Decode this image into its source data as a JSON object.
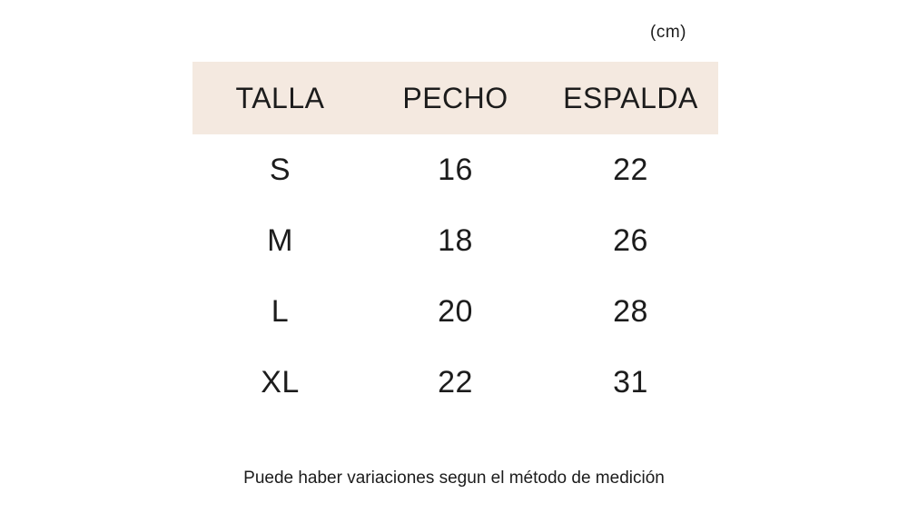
{
  "unit_label": "(cm)",
  "chart_data": {
    "type": "table",
    "unit": "cm",
    "columns": [
      "TALLA",
      "PECHO",
      "ESPALDA"
    ],
    "rows": [
      [
        "S",
        16,
        22
      ],
      [
        "M",
        18,
        26
      ],
      [
        "L",
        20,
        28
      ],
      [
        "XL",
        22,
        31
      ]
    ],
    "footnote": "Puede haber variaciones segun el método de medición"
  },
  "colors": {
    "header_bg": "#f4e9e0",
    "text": "#1c1c1c"
  }
}
